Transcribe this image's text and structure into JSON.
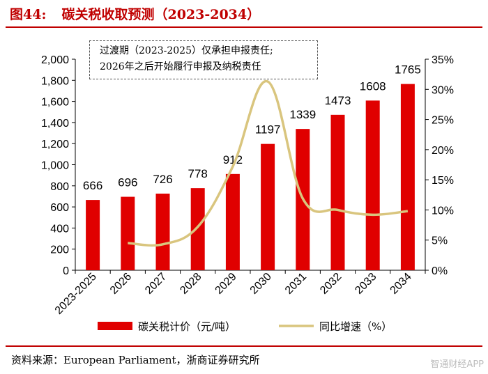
{
  "figure": {
    "number": "图44:",
    "title": "碳关税收取预测（2023-2034）",
    "note_lines": [
      "过渡期（2023-2025）仅承担申报责任;",
      "2026年之后开始履行申报及纳税责任"
    ],
    "source": "资料来源：European Parliament，浙商证券研究所",
    "watermark": "智通财经APP"
  },
  "colors": {
    "accent": "#c00000",
    "bar": "#e00000",
    "line": "#d9c57e"
  },
  "chart_data": {
    "type": "bar+line",
    "categories": [
      "2023-2025",
      "2026",
      "2027",
      "2028",
      "2029",
      "2030",
      "2031",
      "2032",
      "2033",
      "2034"
    ],
    "series": [
      {
        "name": "碳关税计价（元/吨）",
        "type": "bar",
        "axis": "left",
        "values": [
          666,
          696,
          726,
          778,
          912,
          1197,
          1339,
          1473,
          1608,
          1765
        ]
      },
      {
        "name": "同比增速（%）",
        "type": "line",
        "axis": "right",
        "values": [
          null,
          4.5,
          4.3,
          7.2,
          17.2,
          31.3,
          11.9,
          10.0,
          9.2,
          9.8
        ]
      }
    ],
    "data_labels": [
      "666",
      "696",
      "726",
      "778",
      "912",
      "1197",
      "1339",
      "1473",
      "1608",
      "1765"
    ],
    "y_left": {
      "min": 0,
      "max": 2000,
      "step": 200,
      "tick_labels": [
        "0",
        "200",
        "400",
        "600",
        "800",
        "1,000",
        "1,200",
        "1,400",
        "1,600",
        "1,800",
        "2,000"
      ]
    },
    "y_right": {
      "min": 0,
      "max": 35,
      "step": 5,
      "tick_labels": [
        "0%",
        "5%",
        "10%",
        "15%",
        "20%",
        "25%",
        "30%",
        "35%"
      ]
    },
    "legend": {
      "position": "bottom",
      "bar_label": "碳关税计价（元/吨）",
      "line_label": "同比增速（%）"
    }
  }
}
